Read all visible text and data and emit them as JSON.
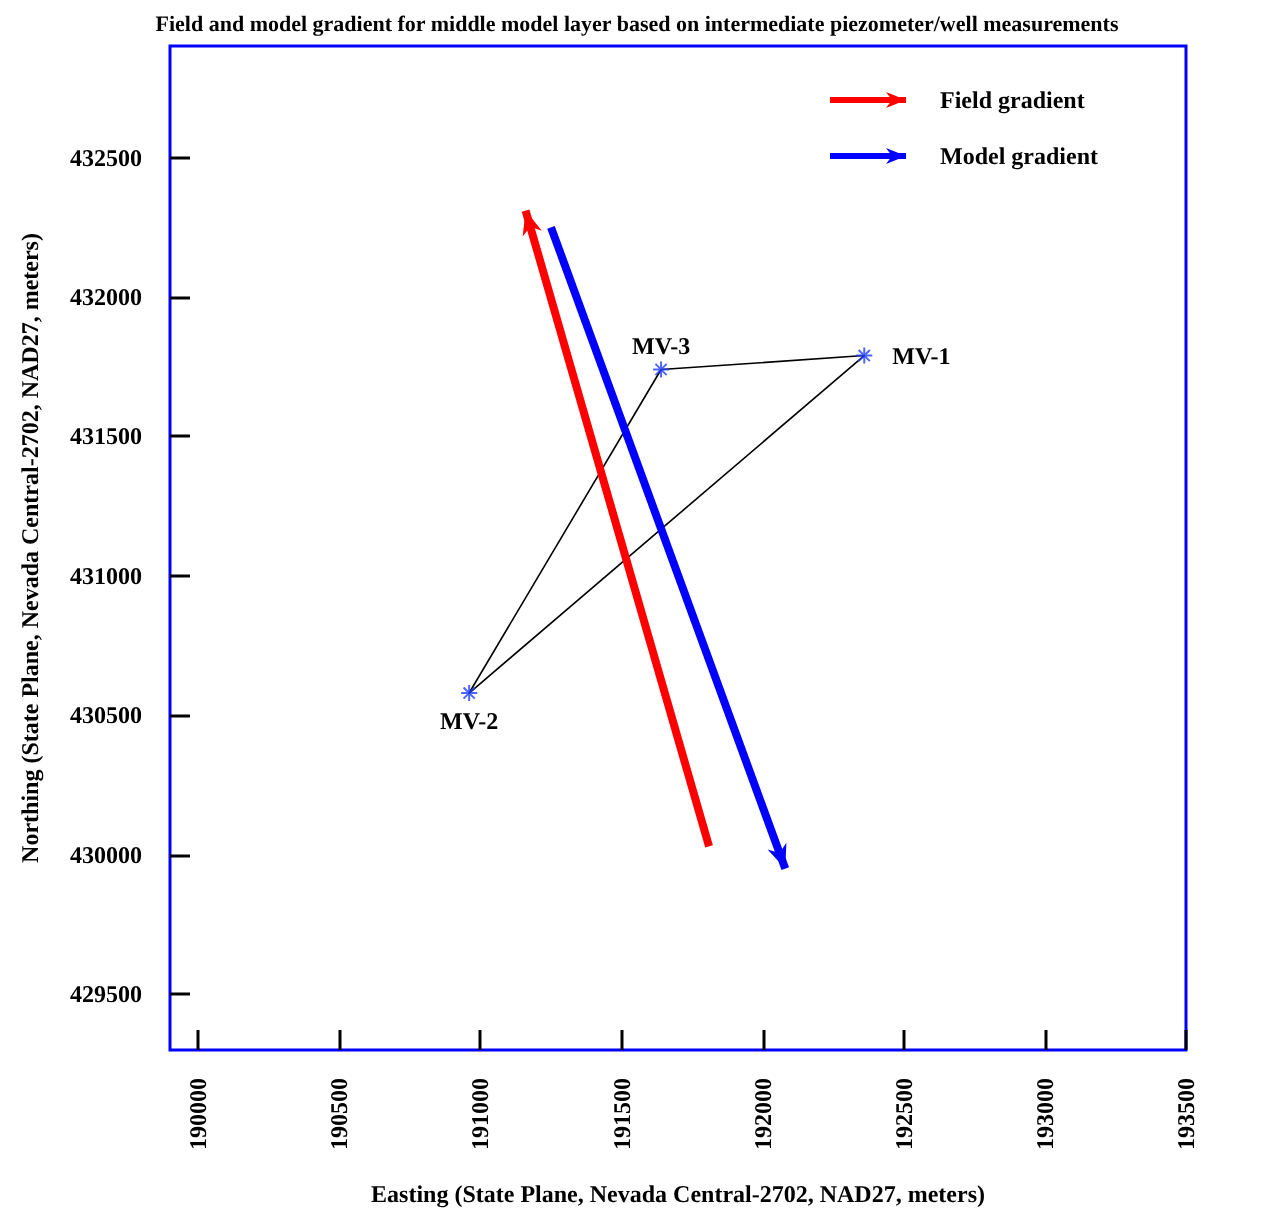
{
  "chart_data": {
    "type": "line",
    "title": "Field and model gradient for middle model layer based on intermediate piezometer/well measurements",
    "xlabel": "Easting (State Plane, Nevada Central-2702, NAD27, meters)",
    "ylabel": "Northing (State Plane, Nevada Central-2702, NAD27, meters)",
    "xlim": [
      189900,
      193500
    ],
    "ylim": [
      429300,
      432900
    ],
    "xticks": [
      190000,
      190500,
      191000,
      191500,
      192000,
      192500,
      193000,
      193500
    ],
    "yticks": [
      429500,
      430000,
      430500,
      431000,
      431500,
      432000,
      432500
    ],
    "grid": false,
    "legend": "top right",
    "series": [
      {
        "color": "#000000",
        "marker": "none",
        "x": [
          190960,
          191640
        ],
        "values": [
          430580,
          431740
        ]
      },
      {
        "color": "#000000",
        "marker": "none",
        "x": [
          191640,
          192360
        ],
        "values": [
          431740,
          431790
        ]
      },
      {
        "color": "#000000",
        "marker": "none",
        "x": [
          190960,
          192360
        ],
        "values": [
          430580,
          431790
        ]
      },
      {
        "type": "scatter",
        "color": "#2040ff",
        "marker": "cross",
        "x": [
          190960,
          191640,
          192360
        ],
        "values": [
          430580,
          431740,
          431790
        ]
      },
      {
        "name": "Field gradient",
        "color": "#ff0000",
        "marker": "none",
        "x": [
          191810,
          191160
        ],
        "values": [
          430030,
          432310
        ]
      },
      {
        "name": "Model gradient",
        "color": "#0000ff",
        "marker": "none",
        "x": [
          191250,
          192080
        ],
        "values": [
          432250,
          429950
        ]
      }
    ],
    "annotations": [
      {
        "text": "MV-1",
        "x": 192360,
        "y": 431790
      },
      {
        "text": "MV-2",
        "x": 190960,
        "y": 430580
      },
      {
        "text": "MV-3",
        "x": 191640,
        "y": 431740
      }
    ]
  }
}
